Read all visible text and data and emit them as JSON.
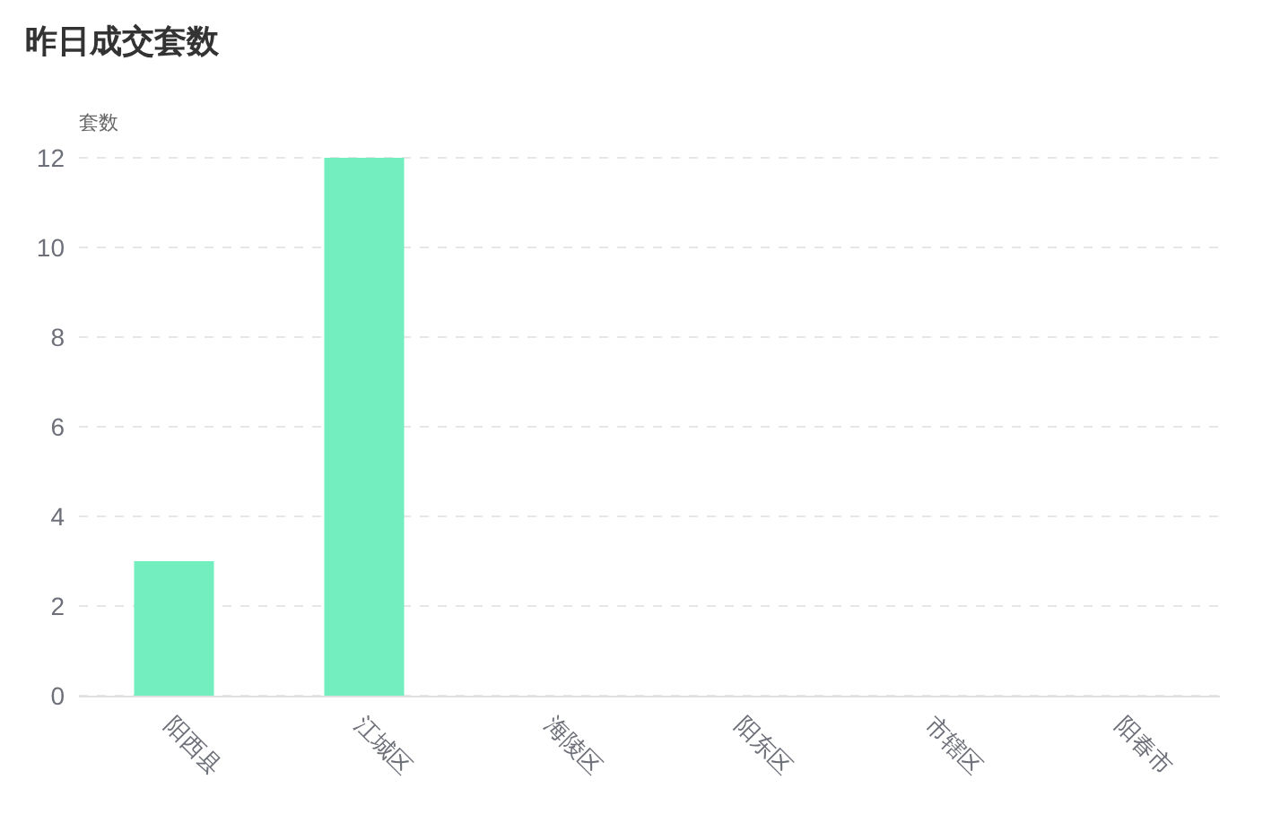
{
  "chart_data": {
    "type": "bar",
    "title": "昨日成交套数",
    "ylabel": "套数",
    "categories": [
      "阳西县",
      "江城区",
      "海陵区",
      "阳东区",
      "市辖区",
      "阳春市"
    ],
    "values": [
      3,
      12,
      0,
      0,
      0,
      0
    ],
    "color": "#72eebf",
    "ylim": [
      0,
      12
    ],
    "yticks": [
      0,
      2,
      4,
      6,
      8,
      10,
      12
    ],
    "grid": "y"
  }
}
